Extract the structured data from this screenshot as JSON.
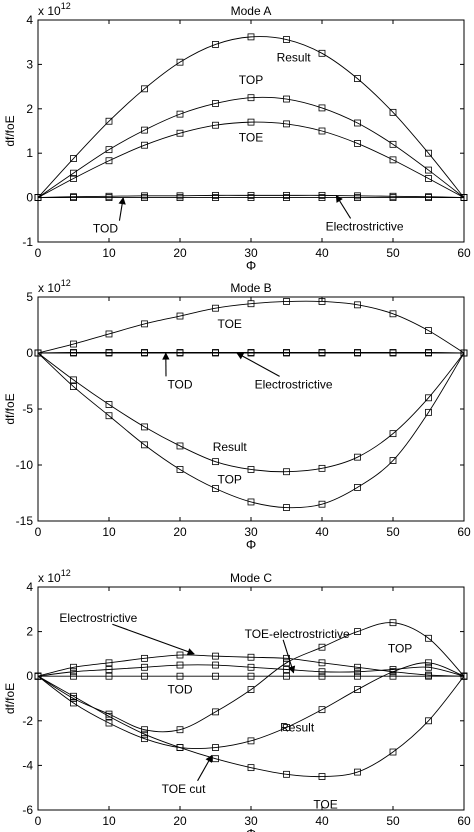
{
  "chart_data": [
    {
      "type": "line",
      "title": "Mode A",
      "xlabel": "Φ",
      "ylabel": "df/foE",
      "y_multiplier": "x 10",
      "y_exponent": "12",
      "xlim": [
        0,
        60
      ],
      "ylim": [
        -1,
        4
      ],
      "xticks": [
        "0",
        "10",
        "20",
        "30",
        "40",
        "50",
        "60"
      ],
      "yticks": [
        "-1",
        "0",
        "1",
        "2",
        "3",
        "4"
      ],
      "series": [
        {
          "name": "Result",
          "x": [
            0,
            5,
            10,
            15,
            20,
            25,
            30,
            35,
            40,
            45,
            50,
            55,
            60
          ],
          "y": [
            0,
            0.88,
            1.72,
            2.45,
            3.05,
            3.45,
            3.62,
            3.56,
            3.25,
            2.68,
            1.92,
            1.0,
            0
          ]
        },
        {
          "name": "TOP",
          "x": [
            0,
            5,
            10,
            15,
            20,
            25,
            30,
            35,
            40,
            45,
            50,
            55,
            60
          ],
          "y": [
            0,
            0.55,
            1.08,
            1.52,
            1.88,
            2.12,
            2.25,
            2.22,
            2.02,
            1.68,
            1.2,
            0.62,
            0
          ]
        },
        {
          "name": "TOE",
          "x": [
            0,
            5,
            10,
            15,
            20,
            25,
            30,
            35,
            40,
            45,
            50,
            55,
            60
          ],
          "y": [
            0,
            0.43,
            0.83,
            1.18,
            1.45,
            1.63,
            1.7,
            1.66,
            1.5,
            1.22,
            0.85,
            0.43,
            0
          ]
        },
        {
          "name": "TOD",
          "x": [
            0,
            5,
            10,
            15,
            20,
            25,
            30,
            35,
            40,
            45,
            50,
            55,
            60
          ],
          "y": [
            0,
            0,
            0,
            0,
            0,
            0,
            0,
            0,
            0,
            0,
            0,
            0,
            0
          ]
        },
        {
          "name": "Electrostrictive",
          "x": [
            0,
            5,
            10,
            15,
            20,
            25,
            30,
            35,
            40,
            45,
            50,
            55,
            60
          ],
          "y": [
            0,
            0.02,
            0.03,
            0.04,
            0.04,
            0.05,
            0.05,
            0.05,
            0.05,
            0.04,
            0.03,
            0.02,
            0
          ]
        }
      ],
      "annotations": [
        {
          "text": "Result",
          "x": 36,
          "y": 3.15
        },
        {
          "text": "TOP",
          "x": 30,
          "y": 2.65
        },
        {
          "text": "TOE",
          "x": 30,
          "y": 1.35
        },
        {
          "text": "TOD",
          "x": 9.5,
          "y": -0.7,
          "arrow_to": [
            12,
            0
          ]
        },
        {
          "text": "Electrostrictive",
          "x": 46,
          "y": -0.65,
          "arrow_to": [
            42,
            0.05
          ]
        }
      ]
    },
    {
      "type": "line",
      "title": "Mode B",
      "xlabel": "Φ",
      "ylabel": "df/foE",
      "y_multiplier": "x 10",
      "y_exponent": "12",
      "xlim": [
        0,
        60
      ],
      "ylim": [
        -15,
        5
      ],
      "xticks": [
        "0",
        "10",
        "20",
        "30",
        "40",
        "50",
        "60"
      ],
      "yticks": [
        "-15",
        "-10",
        "-5",
        "0",
        "5"
      ],
      "series": [
        {
          "name": "TOE",
          "x": [
            0,
            5,
            10,
            15,
            20,
            25,
            30,
            35,
            40,
            45,
            50,
            55,
            60
          ],
          "y": [
            0,
            0.8,
            1.7,
            2.6,
            3.3,
            4.0,
            4.4,
            4.6,
            4.6,
            4.3,
            3.5,
            2.0,
            0
          ]
        },
        {
          "name": "TOD",
          "x": [
            0,
            5,
            10,
            15,
            20,
            25,
            30,
            35,
            40,
            45,
            50,
            55,
            60
          ],
          "y": [
            0,
            0,
            0,
            0,
            0,
            0,
            0,
            0,
            0,
            0,
            0,
            0,
            0
          ]
        },
        {
          "name": "Electrostrictive",
          "x": [
            0,
            5,
            10,
            15,
            20,
            25,
            30,
            35,
            40,
            45,
            50,
            55,
            60
          ],
          "y": [
            0,
            0.05,
            0.05,
            0.05,
            0.05,
            0.05,
            0.05,
            0.05,
            0.05,
            0.05,
            0.05,
            0.05,
            0
          ]
        },
        {
          "name": "Result",
          "x": [
            0,
            5,
            10,
            15,
            20,
            25,
            30,
            35,
            40,
            45,
            50,
            55,
            60
          ],
          "y": [
            0,
            -2.4,
            -4.6,
            -6.6,
            -8.3,
            -9.7,
            -10.4,
            -10.6,
            -10.3,
            -9.3,
            -7.2,
            -4.0,
            0
          ]
        },
        {
          "name": "TOP",
          "x": [
            0,
            5,
            10,
            15,
            20,
            25,
            30,
            35,
            40,
            45,
            50,
            55,
            60
          ],
          "y": [
            0,
            -3.0,
            -5.6,
            -8.2,
            -10.4,
            -12.1,
            -13.3,
            -13.8,
            -13.5,
            -12.0,
            -9.6,
            -5.3,
            0
          ]
        }
      ],
      "annotations": [
        {
          "text": "TOE",
          "x": 27,
          "y": 2.6
        },
        {
          "text": "TOD",
          "x": 20,
          "y": -2.8,
          "arrow_to": [
            18,
            0
          ]
        },
        {
          "text": "Electrostrictive",
          "x": 36,
          "y": -2.8,
          "arrow_to": [
            28,
            0
          ]
        },
        {
          "text": "Result",
          "x": 27,
          "y": -8.4
        },
        {
          "text": "TOP",
          "x": 27,
          "y": -11.3
        }
      ]
    },
    {
      "type": "line",
      "title": "Mode C",
      "xlabel": "Φ",
      "ylabel": "df/foE",
      "y_multiplier": "x 10",
      "y_exponent": "12",
      "xlim": [
        0,
        60
      ],
      "ylim": [
        -6,
        4
      ],
      "xticks": [
        "0",
        "10",
        "20",
        "30",
        "40",
        "50",
        "60"
      ],
      "yticks": [
        "-6",
        "-4",
        "-2",
        "0",
        "2",
        "4"
      ],
      "series": [
        {
          "name": "Electrostrictive",
          "x": [
            0,
            5,
            10,
            15,
            20,
            25,
            30,
            35,
            40,
            45,
            50,
            55,
            60
          ],
          "y": [
            0,
            0.4,
            0.6,
            0.8,
            0.95,
            0.9,
            0.85,
            0.8,
            0.6,
            0.4,
            0.2,
            0.05,
            0
          ]
        },
        {
          "name": "TOD",
          "x": [
            0,
            5,
            10,
            15,
            20,
            25,
            30,
            35,
            40,
            45,
            50,
            55,
            60
          ],
          "y": [
            0,
            0,
            0,
            0,
            0,
            0,
            0,
            0,
            0,
            0,
            0,
            0,
            0
          ]
        },
        {
          "name": "TOE-electrostrictive",
          "x": [
            0,
            5,
            10,
            15,
            20,
            25,
            30,
            35,
            40,
            45,
            50,
            55,
            60
          ],
          "y": [
            0,
            0.2,
            0.3,
            0.4,
            0.5,
            0.5,
            0.4,
            0.3,
            0.2,
            0.2,
            0.3,
            0.4,
            0
          ]
        },
        {
          "name": "TOP",
          "x": [
            0,
            5,
            10,
            15,
            20,
            25,
            30,
            35,
            40,
            45,
            50,
            55,
            60
          ],
          "y": [
            0,
            -1.0,
            -1.7,
            -2.4,
            -2.4,
            -1.6,
            -0.6,
            0.6,
            1.3,
            2.0,
            2.4,
            1.7,
            0
          ]
        },
        {
          "name": "Result",
          "x": [
            0,
            5,
            10,
            15,
            20,
            25,
            30,
            35,
            40,
            45,
            50,
            55,
            60
          ],
          "y": [
            0,
            -1.2,
            -2.1,
            -2.8,
            -3.2,
            -3.2,
            -2.9,
            -2.3,
            -1.5,
            -0.6,
            0.2,
            0.6,
            0
          ]
        },
        {
          "name": "TOE",
          "x": [
            0,
            5,
            10,
            15,
            20,
            25,
            30,
            35,
            40,
            45,
            50,
            55,
            60
          ],
          "y": [
            0,
            -0.9,
            -1.8,
            -2.6,
            -3.2,
            -3.7,
            -4.1,
            -4.4,
            -4.5,
            -4.3,
            -3.4,
            -2.0,
            0
          ]
        }
      ],
      "annotations": [
        {
          "text": "Electrostrictive",
          "x": 8.5,
          "y": 2.6,
          "arrow_to": [
            22,
            1.0
          ]
        },
        {
          "text": "TOE-electrostrictive",
          "x": 36.5,
          "y": 1.9,
          "arrow_to": [
            36,
            0.15
          ]
        },
        {
          "text": "TOP",
          "x": 51,
          "y": 1.25
        },
        {
          "text": "TOD",
          "x": 20,
          "y": -0.6
        },
        {
          "text": "Result",
          "x": 36.5,
          "y": -2.3
        },
        {
          "text": "TOE cut",
          "x": 20.5,
          "y": -5.05,
          "arrow_to": [
            24.5,
            -3.55
          ]
        },
        {
          "text": "TOE",
          "x": 40.5,
          "y": -5.75
        }
      ]
    }
  ]
}
